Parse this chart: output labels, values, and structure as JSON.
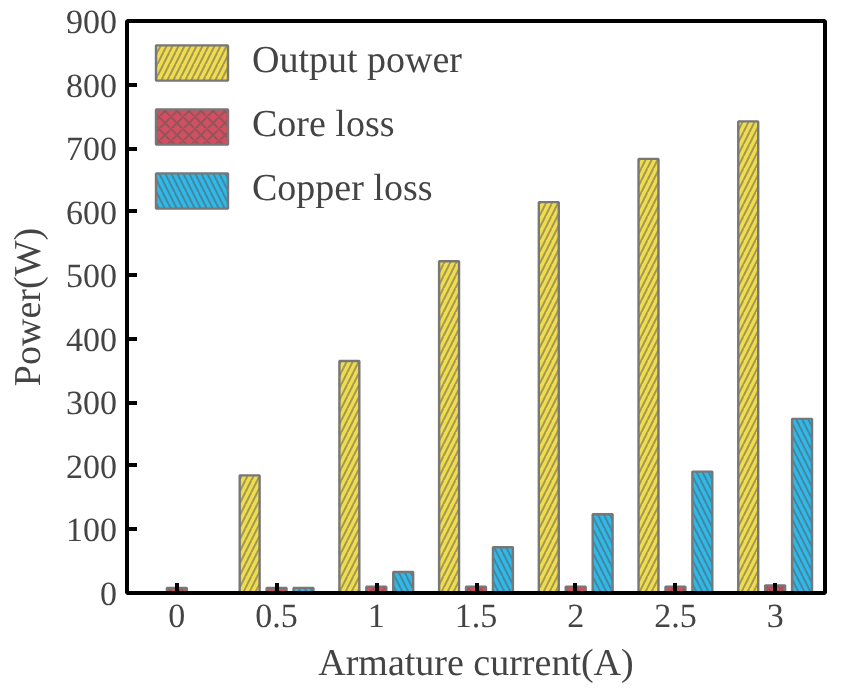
{
  "chart_data": {
    "type": "bar",
    "xlabel": "Armature current(A)",
    "ylabel": "Power(W)",
    "categories": [
      "0",
      "0.5",
      "1",
      "1.5",
      "2",
      "2.5",
      "3"
    ],
    "series": [
      {
        "name": "Output power",
        "color": "#f0dc50",
        "values": [
          null,
          185,
          365,
          522,
          615,
          683,
          742
        ]
      },
      {
        "name": "Core loss",
        "color": "#d05060",
        "values": [
          8,
          8,
          10,
          10,
          10,
          10,
          12
        ]
      },
      {
        "name": "Copper loss",
        "color": "#30b8e8",
        "values": [
          null,
          8,
          33,
          72,
          124,
          191,
          274
        ]
      }
    ],
    "ylim": [
      0,
      900
    ],
    "yticks": [
      0,
      100,
      200,
      300,
      400,
      500,
      600,
      700,
      800,
      900
    ],
    "grid": false,
    "legend": "top left"
  }
}
